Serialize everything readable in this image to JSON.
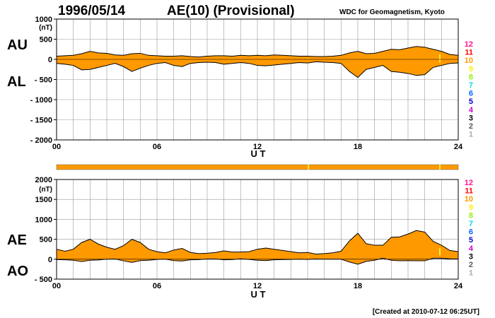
{
  "header": {
    "date": "1996/05/14",
    "title": "AE(10) (Provisional)",
    "source": "WDC for Geomagnetism, Kyoto"
  },
  "footer": {
    "created": "[Created at 2010-07-12 06:25UT]"
  },
  "colors": {
    "fill": "#ff9900",
    "line": "#000000",
    "grid": "#999999",
    "marker": "#ffee33",
    "station_levels": {
      "12": "#ff1493",
      "11": "#ff0000",
      "10": "#ff9900",
      "9": "#ffee00",
      "8": "#99ee00",
      "7": "#00ddee",
      "6": "#0066ff",
      "5": "#0000cc",
      "4": "#cc00cc",
      "3": "#000000",
      "2": "#555555",
      "1": "#aaaaaa"
    }
  },
  "chart_data": [
    {
      "type": "area",
      "panel": "AU/AL",
      "xlabel": "U T",
      "ylabel_unit": "(nT)",
      "series_labels": [
        "AU",
        "AL"
      ],
      "ylim": [
        -2000,
        1000
      ],
      "yticks": [
        1000,
        500,
        0,
        -500,
        -1000,
        -1500,
        -2000
      ],
      "ytick_labels": [
        "1000",
        "500",
        "0",
        "- 500",
        "- 1000",
        "- 1500",
        "- 2000"
      ],
      "xlim": [
        0,
        24
      ],
      "xtick_labels": [
        "00",
        "06",
        "12",
        "18",
        "24"
      ],
      "grid": true,
      "upper": {
        "name": "AU",
        "x": [
          0,
          0.5,
          1,
          1.5,
          2,
          2.5,
          3,
          3.5,
          4,
          4.5,
          5,
          5.5,
          6,
          6.5,
          7,
          7.5,
          8,
          8.5,
          9,
          9.5,
          10,
          10.5,
          11,
          11.5,
          12,
          12.5,
          13,
          13.5,
          14,
          14.5,
          15,
          15.5,
          16,
          16.5,
          17,
          17.5,
          18,
          18.5,
          19,
          19.5,
          20,
          20.5,
          21,
          21.5,
          22,
          22.5,
          23,
          23.5,
          24
        ],
        "y": [
          80,
          90,
          100,
          140,
          200,
          160,
          150,
          110,
          100,
          140,
          150,
          100,
          90,
          80,
          80,
          90,
          70,
          60,
          80,
          90,
          90,
          80,
          100,
          90,
          100,
          90,
          110,
          100,
          90,
          80,
          80,
          70,
          70,
          80,
          100,
          160,
          200,
          140,
          150,
          200,
          250,
          240,
          280,
          320,
          300,
          250,
          200,
          120,
          100
        ]
      },
      "lower": {
        "name": "AL",
        "x": [
          0,
          0.5,
          1,
          1.5,
          2,
          2.5,
          3,
          3.5,
          4,
          4.5,
          5,
          5.5,
          6,
          6.5,
          7,
          7.5,
          8,
          8.5,
          9,
          9.5,
          10,
          10.5,
          11,
          11.5,
          12,
          12.5,
          13,
          13.5,
          14,
          14.5,
          15,
          15.5,
          16,
          16.5,
          17,
          17.5,
          18,
          18.5,
          19,
          19.5,
          20,
          20.5,
          21,
          21.5,
          22,
          22.5,
          23,
          23.5,
          24
        ],
        "y": [
          -100,
          -120,
          -150,
          -260,
          -250,
          -200,
          -150,
          -100,
          -180,
          -300,
          -220,
          -150,
          -100,
          -80,
          -150,
          -180,
          -100,
          -80,
          -70,
          -80,
          -120,
          -100,
          -80,
          -100,
          -150,
          -160,
          -140,
          -120,
          -100,
          -80,
          -90,
          -60,
          -70,
          -80,
          -100,
          -300,
          -450,
          -250,
          -200,
          -150,
          -300,
          -320,
          -350,
          -400,
          -380,
          -200,
          -150,
          -100,
          -90
        ]
      },
      "markers_x": [
        15.05,
        22.9
      ]
    },
    {
      "type": "area",
      "panel": "AE/AO",
      "xlabel": "U T",
      "ylabel_unit": "(nT)",
      "series_labels": [
        "AE",
        "AO"
      ],
      "ylim": [
        -500,
        2000
      ],
      "yticks": [
        2000,
        1500,
        1000,
        500,
        0,
        -500
      ],
      "ytick_labels": [
        "2000",
        "1500",
        "1000",
        "500",
        "0",
        "- 500"
      ],
      "xlim": [
        0,
        24
      ],
      "xtick_labels": [
        "00",
        "06",
        "12",
        "18",
        "24"
      ],
      "grid": true,
      "upper": {
        "name": "AE",
        "x": [
          0,
          0.5,
          1,
          1.5,
          2,
          2.5,
          3,
          3.5,
          4,
          4.5,
          5,
          5.5,
          6,
          6.5,
          7,
          7.5,
          8,
          8.5,
          9,
          9.5,
          10,
          10.5,
          11,
          11.5,
          12,
          12.5,
          13,
          13.5,
          14,
          14.5,
          15,
          15.5,
          16,
          16.5,
          17,
          17.5,
          18,
          18.5,
          19,
          19.5,
          20,
          20.5,
          21,
          21.5,
          22,
          22.5,
          23,
          23.5,
          24
        ],
        "y": [
          250,
          200,
          250,
          420,
          500,
          380,
          300,
          250,
          340,
          500,
          420,
          250,
          190,
          160,
          230,
          270,
          170,
          140,
          150,
          170,
          210,
          180,
          180,
          190,
          250,
          280,
          250,
          220,
          190,
          160,
          170,
          130,
          140,
          160,
          200,
          460,
          650,
          390,
          350,
          350,
          550,
          560,
          630,
          720,
          680,
          450,
          350,
          220,
          190
        ]
      },
      "lower": {
        "name": "AO",
        "x": [
          0,
          0.5,
          1,
          1.5,
          2,
          2.5,
          3,
          3.5,
          4,
          4.5,
          5,
          5.5,
          6,
          6.5,
          7,
          7.5,
          8,
          8.5,
          9,
          9.5,
          10,
          10.5,
          11,
          11.5,
          12,
          12.5,
          13,
          13.5,
          14,
          14.5,
          15,
          15.5,
          16,
          16.5,
          17,
          17.5,
          18,
          18.5,
          19,
          19.5,
          20,
          20.5,
          21,
          21.5,
          22,
          22.5,
          23,
          23.5,
          24
        ],
        "y": [
          -10,
          -15,
          -25,
          -60,
          -25,
          -20,
          0,
          5,
          -40,
          -80,
          -35,
          -25,
          -5,
          0,
          -35,
          -45,
          -15,
          -10,
          5,
          5,
          -15,
          -10,
          10,
          -5,
          -25,
          -35,
          -15,
          -10,
          -5,
          0,
          -5,
          5,
          0,
          0,
          0,
          -70,
          -125,
          -55,
          -25,
          25,
          -25,
          -40,
          -35,
          -40,
          -40,
          25,
          25,
          10,
          5
        ]
      },
      "markers_x": [
        15.05,
        22.9
      ]
    }
  ],
  "quality_bar": {
    "color": "#ff9900",
    "markers_x": [
      15.05,
      22.9
    ]
  },
  "station_legend": [
    "12",
    "11",
    "10",
    "9",
    "8",
    "7",
    "6",
    "5",
    "4",
    "3",
    "2",
    "1"
  ]
}
